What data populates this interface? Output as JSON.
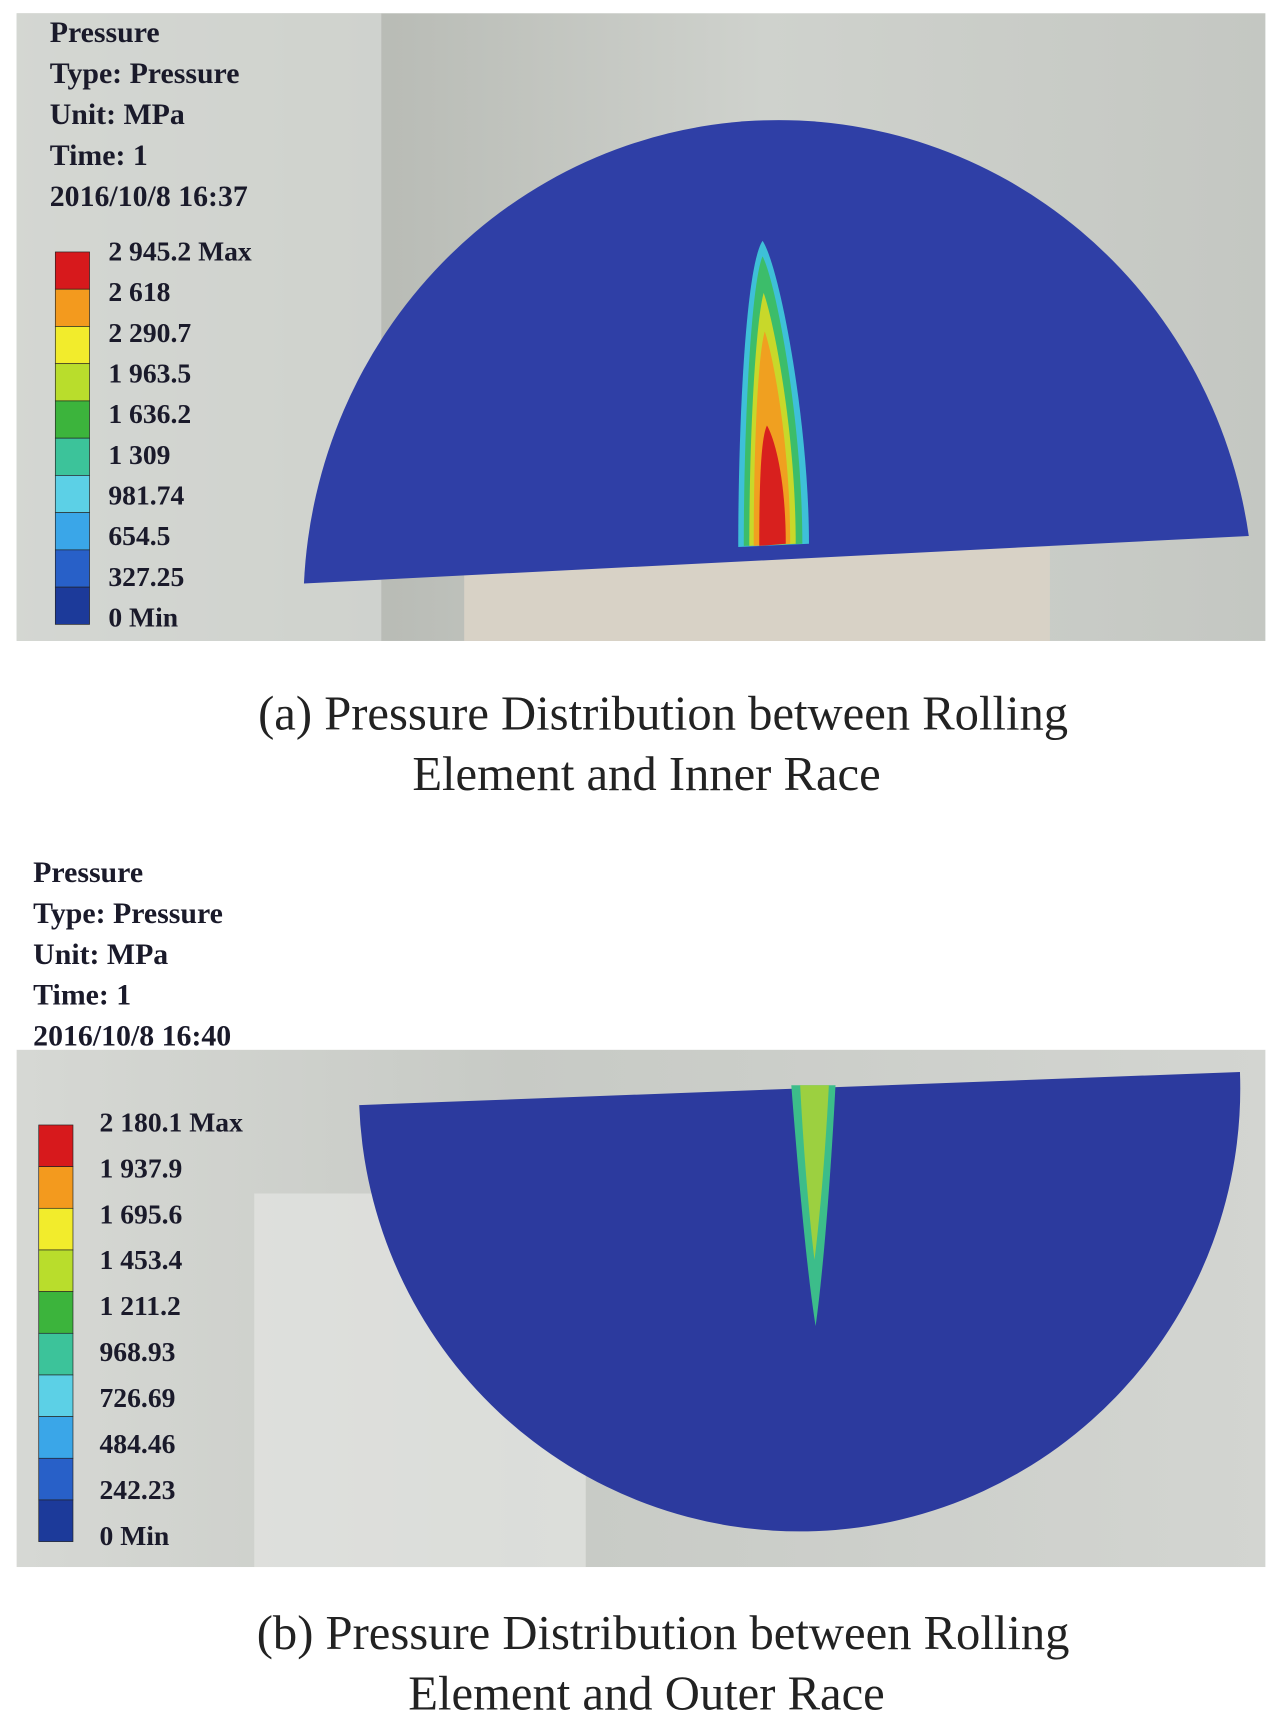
{
  "panels": [
    {
      "header": [
        "Pressure",
        "Type: Pressure",
        "Unit: MPa",
        "Time: 1",
        "2016/10/8 16:37"
      ],
      "legend": [
        "2 945.2 Max",
        "2 618",
        "2 290.7",
        "1 963.5",
        "1 636.2",
        "1 309",
        "981.74",
        "654.5",
        "327.25",
        "0 Min"
      ],
      "caption": [
        "(a)  Pressure Distribution between Rolling",
        "Element and Inner Race"
      ]
    },
    {
      "header": [
        "Pressure",
        "Type: Pressure",
        "Unit: MPa",
        "Time: 1",
        "2016/10/8 16:40"
      ],
      "legend": [
        "2 180.1 Max",
        "1 937.9",
        "1 695.6",
        "1 453.4",
        "1 211.2",
        "968.93",
        "726.69",
        "484.46",
        "242.23",
        "0 Min"
      ],
      "caption": [
        "(b)  Pressure Distribution between Rolling",
        "Element and Outer Race"
      ]
    }
  ]
}
